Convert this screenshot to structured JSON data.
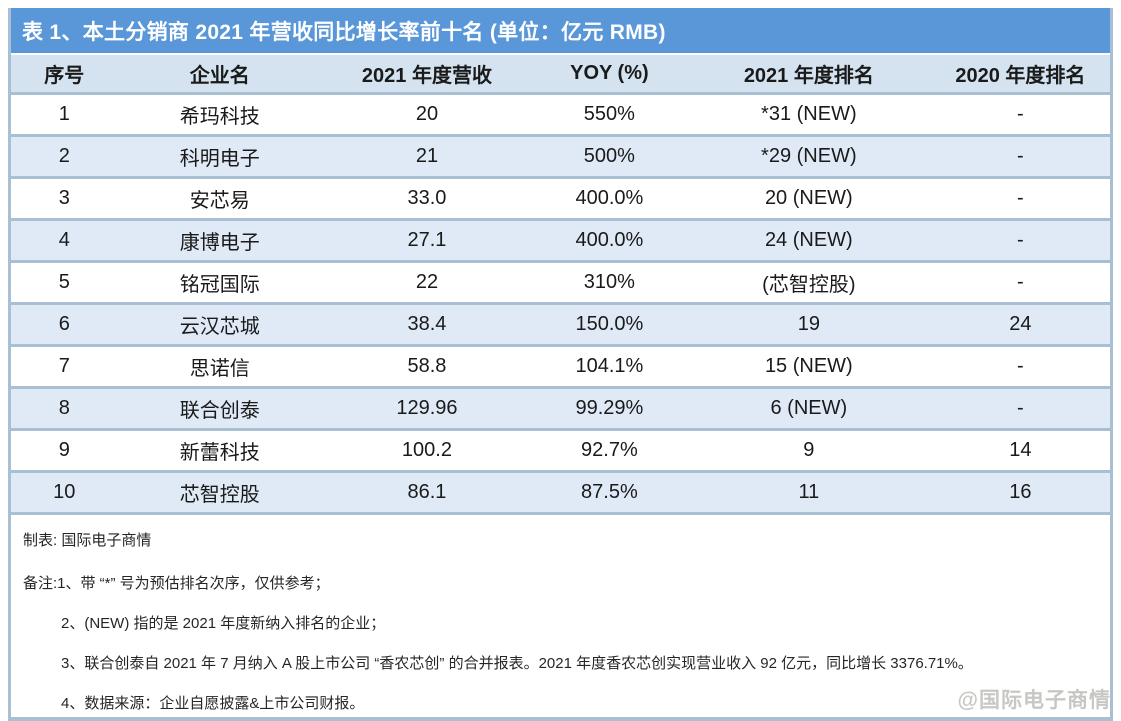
{
  "title": "表 1、本土分销商 2021 年营收同比增长率前十名 (单位：亿元 RMB)",
  "colors": {
    "title_bar_bg": "#5997D8",
    "title_text": "#FFFFFF",
    "header_bg": "#D5E3F1",
    "row_alt_bg": "#DFEAF6",
    "row_bg": "#FFFFFF",
    "border": "#A9BFD4",
    "text": "#1A1A1A"
  },
  "table": {
    "column_keys": [
      "index",
      "company",
      "revenue-2021",
      "yoy-pct",
      "rank-2021",
      "rank-2020"
    ],
    "columns": [
      "序号",
      "企业名",
      "2021 年度营收",
      "YOY (%)",
      "2021 年度排名",
      "2020 年度排名"
    ],
    "rows": [
      [
        "1",
        "希玛科技",
        "20",
        "550%",
        "*31 (NEW)",
        "-"
      ],
      [
        "2",
        "科明电子",
        "21",
        "500%",
        "*29 (NEW)",
        "-"
      ],
      [
        "3",
        "安芯易",
        "33.0",
        "400.0%",
        "20 (NEW)",
        "-"
      ],
      [
        "4",
        "康博电子",
        "27.1",
        "400.0%",
        "24 (NEW)",
        "-"
      ],
      [
        "5",
        "铭冠国际",
        "22",
        "310%",
        "(芯智控股)",
        "-"
      ],
      [
        "6",
        "云汉芯城",
        "38.4",
        "150.0%",
        "19",
        "24"
      ],
      [
        "7",
        "思诺信",
        "58.8",
        "104.1%",
        "15 (NEW)",
        "-"
      ],
      [
        "8",
        "联合创泰",
        "129.96",
        "99.29%",
        "6 (NEW)",
        "-"
      ],
      [
        "9",
        "新蕾科技",
        "100.2",
        "92.7%",
        "9",
        "14"
      ],
      [
        "10",
        "芯智控股",
        "86.1",
        "87.5%",
        "11",
        "16"
      ]
    ]
  },
  "footer": {
    "prepared_by": "制表: 国际电子商情",
    "notes_label": "备注:",
    "notes": [
      "1、带 “*” 号为预估排名次序，仅供参考；",
      "2、(NEW) 指的是 2021 年度新纳入排名的企业；",
      "3、联合创泰自 2021 年 7 月纳入 A 股上市公司 “香农芯创” 的合并报表。2021 年度香农芯创实现营业收入 92 亿元，同比增长 3376.71%。",
      "4、数据来源：企业自愿披露&上市公司财报。"
    ]
  },
  "watermark": "@国际电子商情"
}
